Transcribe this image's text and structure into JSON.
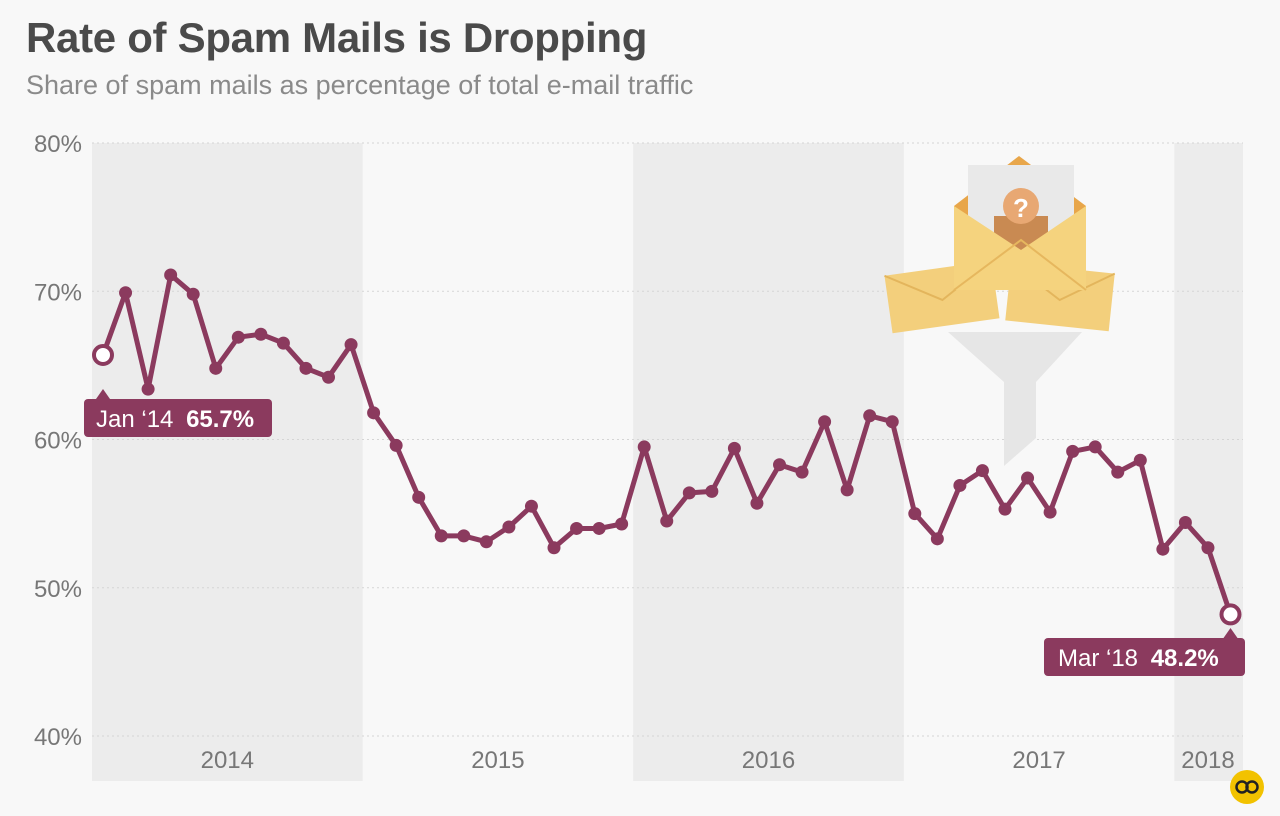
{
  "header": {
    "title": "Rate of Spam Mails is Dropping",
    "subtitle": "Share of spam mails as percentage of total e-mail traffic"
  },
  "colors": {
    "line": "#8b3a5e",
    "band": "#ececec",
    "grid": "#d5d5d5",
    "axis_text": "#777777",
    "logo": "#f2c200"
  },
  "chart_data": {
    "type": "line",
    "title": "Rate of Spam Mails is Dropping",
    "subtitle": "Share of spam mails as percentage of total e-mail traffic",
    "xlabel": "",
    "ylabel": "",
    "ylim": [
      40,
      80
    ],
    "y_ticks": [
      "40%",
      "50%",
      "60%",
      "70%",
      "80%"
    ],
    "y_tick_values": [
      40,
      50,
      60,
      70,
      80
    ],
    "x_year_labels": [
      "2014",
      "2015",
      "2016",
      "2017",
      "2018"
    ],
    "year_bands": [
      "2014",
      "2016",
      "2018"
    ],
    "grid": true,
    "series": [
      {
        "values": [
          65.7,
          69.9,
          63.4,
          71.1,
          69.8,
          64.8,
          66.9,
          67.1,
          66.5,
          64.8,
          64.2,
          66.4,
          61.8,
          59.6,
          56.1,
          53.5,
          53.5,
          53.1,
          54.1,
          55.5,
          52.7,
          54.0,
          54.0,
          54.3,
          59.5,
          54.5,
          56.4,
          56.5,
          59.4,
          55.7,
          58.3,
          57.8,
          61.2,
          56.6,
          61.6,
          61.2,
          55.0,
          53.3,
          56.9,
          57.9,
          55.3,
          57.4,
          55.1,
          59.2,
          59.5,
          57.8,
          58.6,
          52.6,
          54.4,
          52.7,
          48.2
        ]
      }
    ],
    "annotations": [
      {
        "date": "Jan ‘14",
        "value": "65.7%"
      },
      {
        "date": "Mar ‘18",
        "value": "48.2%"
      }
    ]
  }
}
